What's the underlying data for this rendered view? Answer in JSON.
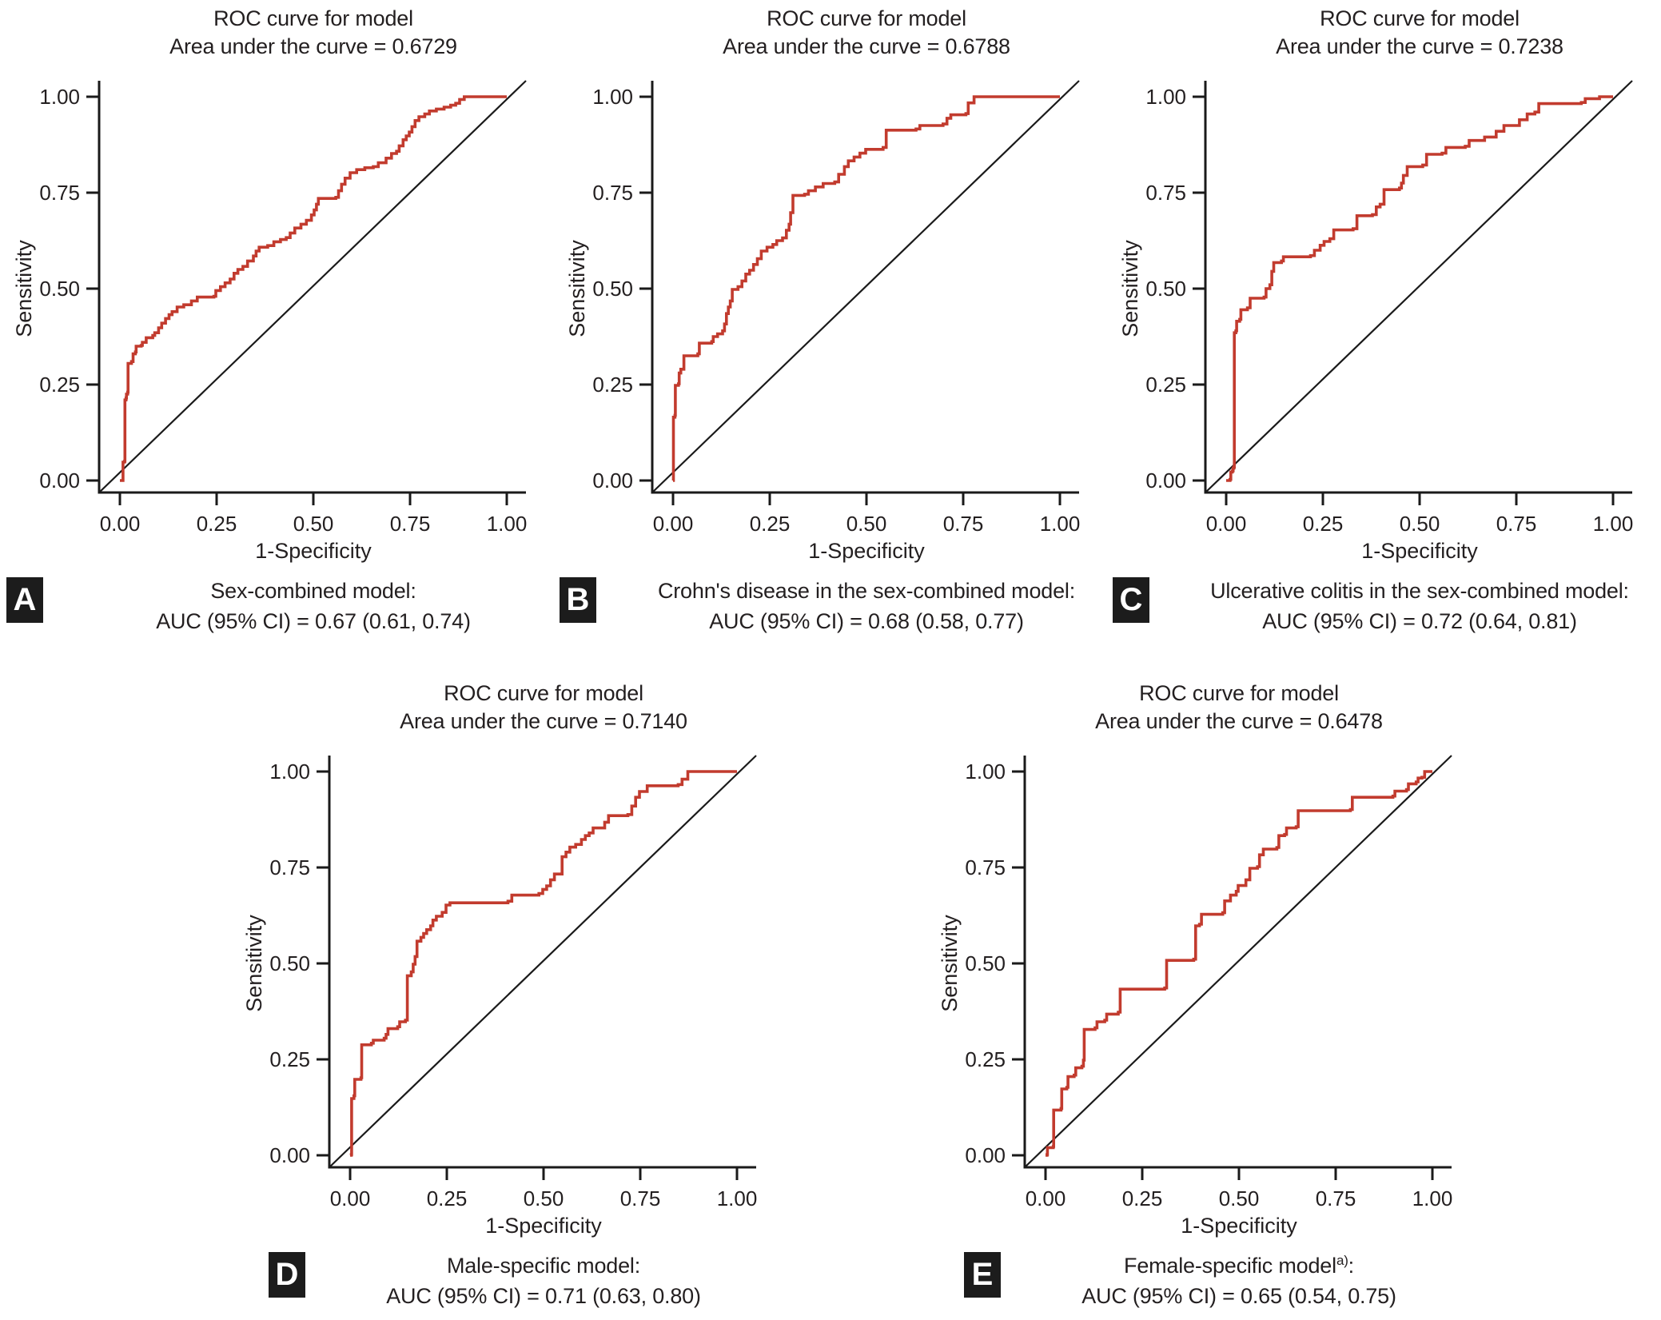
{
  "figure": {
    "x_axis_label": "1-Specificity",
    "y_axis_label": "Sensitivity",
    "x_tick_labels": [
      "0.00",
      "0.25",
      "0.50",
      "0.75",
      "1.00"
    ],
    "y_tick_labels": [
      "1.00",
      "0.75",
      "0.50",
      "0.25",
      "0.00"
    ],
    "curve_color": "#c23b2e",
    "diagonal_color": "#1a1a1a",
    "axis_color": "#1a1a1a",
    "badge_bg_color": "#1c1c1c",
    "badge_text_color": "#ffffff"
  },
  "chart_data": [
    {
      "panel_label": "A",
      "type": "line",
      "title": "ROC curve for model",
      "subtitle": "Area under the curve = 0.6729",
      "auc": 0.6729,
      "auc_95ci": [
        0.61,
        0.74
      ],
      "caption_model": "Sex-combined model",
      "caption_sup": "",
      "caption_colon": ":",
      "caption_auc": "AUC (95% CI) = 0.67 (0.61, 0.74)",
      "xlabel": "1-Specificity",
      "ylabel": "Sensitivity",
      "xlim": [
        0,
        1
      ],
      "ylim": [
        0,
        1
      ],
      "points": [
        [
          0,
          0
        ],
        [
          0.008,
          0.002
        ],
        [
          0.008,
          0.048
        ],
        [
          0.012,
          0.05
        ],
        [
          0.013,
          0.21
        ],
        [
          0.016,
          0.215
        ],
        [
          0.017,
          0.225
        ],
        [
          0.02,
          0.23
        ],
        [
          0.021,
          0.305
        ],
        [
          0.03,
          0.31
        ],
        [
          0.034,
          0.33
        ],
        [
          0.04,
          0.335
        ],
        [
          0.042,
          0.35
        ],
        [
          0.055,
          0.352
        ],
        [
          0.058,
          0.36
        ],
        [
          0.068,
          0.372
        ],
        [
          0.085,
          0.378
        ],
        [
          0.09,
          0.385
        ],
        [
          0.1,
          0.398
        ],
        [
          0.108,
          0.41
        ],
        [
          0.118,
          0.422
        ],
        [
          0.127,
          0.432
        ],
        [
          0.135,
          0.44
        ],
        [
          0.148,
          0.452
        ],
        [
          0.165,
          0.458
        ],
        [
          0.185,
          0.468
        ],
        [
          0.2,
          0.478
        ],
        [
          0.243,
          0.48
        ],
        [
          0.248,
          0.495
        ],
        [
          0.26,
          0.505
        ],
        [
          0.272,
          0.515
        ],
        [
          0.285,
          0.525
        ],
        [
          0.295,
          0.54
        ],
        [
          0.305,
          0.55
        ],
        [
          0.318,
          0.558
        ],
        [
          0.33,
          0.572
        ],
        [
          0.345,
          0.585
        ],
        [
          0.352,
          0.598
        ],
        [
          0.36,
          0.608
        ],
        [
          0.382,
          0.612
        ],
        [
          0.398,
          0.622
        ],
        [
          0.415,
          0.628
        ],
        [
          0.43,
          0.633
        ],
        [
          0.44,
          0.645
        ],
        [
          0.452,
          0.658
        ],
        [
          0.468,
          0.668
        ],
        [
          0.482,
          0.678
        ],
        [
          0.495,
          0.692
        ],
        [
          0.502,
          0.705
        ],
        [
          0.508,
          0.72
        ],
        [
          0.513,
          0.735
        ],
        [
          0.558,
          0.738
        ],
        [
          0.565,
          0.755
        ],
        [
          0.573,
          0.772
        ],
        [
          0.582,
          0.788
        ],
        [
          0.595,
          0.802
        ],
        [
          0.612,
          0.81
        ],
        [
          0.633,
          0.815
        ],
        [
          0.655,
          0.818
        ],
        [
          0.668,
          0.828
        ],
        [
          0.688,
          0.84
        ],
        [
          0.702,
          0.852
        ],
        [
          0.715,
          0.858
        ],
        [
          0.722,
          0.872
        ],
        [
          0.732,
          0.888
        ],
        [
          0.74,
          0.898
        ],
        [
          0.748,
          0.908
        ],
        [
          0.755,
          0.922
        ],
        [
          0.763,
          0.938
        ],
        [
          0.773,
          0.948
        ],
        [
          0.788,
          0.955
        ],
        [
          0.8,
          0.963
        ],
        [
          0.818,
          0.968
        ],
        [
          0.838,
          0.973
        ],
        [
          0.855,
          0.978
        ],
        [
          0.868,
          0.983
        ],
        [
          0.878,
          0.993
        ],
        [
          0.89,
          1
        ],
        [
          1,
          1
        ]
      ]
    },
    {
      "panel_label": "B",
      "type": "line",
      "title": "ROC curve for model",
      "subtitle": "Area under the curve = 0.6788",
      "auc": 0.6788,
      "auc_95ci": [
        0.58,
        0.77
      ],
      "caption_model": "Crohn's disease in the sex-combined model",
      "caption_sup": "",
      "caption_colon": ":",
      "caption_auc": "AUC (95% CI) = 0.68 (0.58, 0.77)",
      "xlabel": "1-Specificity",
      "ylabel": "Sensitivity",
      "xlim": [
        0,
        1
      ],
      "ylim": [
        0,
        1
      ],
      "points": [
        [
          0,
          0
        ],
        [
          0.001,
          0.165
        ],
        [
          0.005,
          0.17
        ],
        [
          0.006,
          0.248
        ],
        [
          0.014,
          0.252
        ],
        [
          0.016,
          0.28
        ],
        [
          0.02,
          0.29
        ],
        [
          0.028,
          0.325
        ],
        [
          0.064,
          0.33
        ],
        [
          0.068,
          0.358
        ],
        [
          0.1,
          0.362
        ],
        [
          0.104,
          0.375
        ],
        [
          0.115,
          0.382
        ],
        [
          0.128,
          0.39
        ],
        [
          0.133,
          0.408
        ],
        [
          0.138,
          0.435
        ],
        [
          0.143,
          0.452
        ],
        [
          0.148,
          0.468
        ],
        [
          0.153,
          0.498
        ],
        [
          0.168,
          0.505
        ],
        [
          0.178,
          0.52
        ],
        [
          0.188,
          0.538
        ],
        [
          0.198,
          0.548
        ],
        [
          0.208,
          0.563
        ],
        [
          0.218,
          0.578
        ],
        [
          0.228,
          0.598
        ],
        [
          0.243,
          0.608
        ],
        [
          0.258,
          0.615
        ],
        [
          0.268,
          0.625
        ],
        [
          0.283,
          0.632
        ],
        [
          0.293,
          0.652
        ],
        [
          0.3,
          0.668
        ],
        [
          0.304,
          0.698
        ],
        [
          0.31,
          0.743
        ],
        [
          0.34,
          0.746
        ],
        [
          0.35,
          0.755
        ],
        [
          0.368,
          0.765
        ],
        [
          0.388,
          0.774
        ],
        [
          0.418,
          0.778
        ],
        [
          0.428,
          0.798
        ],
        [
          0.443,
          0.818
        ],
        [
          0.453,
          0.833
        ],
        [
          0.468,
          0.843
        ],
        [
          0.483,
          0.853
        ],
        [
          0.498,
          0.863
        ],
        [
          0.543,
          0.868
        ],
        [
          0.551,
          0.913
        ],
        [
          0.628,
          0.916
        ],
        [
          0.638,
          0.925
        ],
        [
          0.698,
          0.929
        ],
        [
          0.708,
          0.944
        ],
        [
          0.718,
          0.953
        ],
        [
          0.757,
          0.956
        ],
        [
          0.763,
          0.984
        ],
        [
          0.778,
          1
        ],
        [
          1,
          1
        ]
      ]
    },
    {
      "panel_label": "C",
      "type": "line",
      "title": "ROC curve for model",
      "subtitle": "Area under the curve = 0.7238",
      "auc": 0.7238,
      "auc_95ci": [
        0.64,
        0.81
      ],
      "caption_model": "Ulcerative colitis in the sex-combined model",
      "caption_sup": "",
      "caption_colon": ":",
      "caption_auc": "AUC (95% CI) = 0.72 (0.64, 0.81)",
      "xlabel": "1-Specificity",
      "ylabel": "Sensitivity",
      "xlim": [
        0,
        1
      ],
      "ylim": [
        0,
        1
      ],
      "points": [
        [
          0,
          0
        ],
        [
          0.01,
          0.003
        ],
        [
          0.012,
          0.022
        ],
        [
          0.016,
          0.025
        ],
        [
          0.018,
          0.032
        ],
        [
          0.02,
          0.035
        ],
        [
          0.021,
          0.385
        ],
        [
          0.025,
          0.39
        ],
        [
          0.027,
          0.415
        ],
        [
          0.035,
          0.42
        ],
        [
          0.038,
          0.445
        ],
        [
          0.055,
          0.45
        ],
        [
          0.062,
          0.475
        ],
        [
          0.098,
          0.478
        ],
        [
          0.103,
          0.5
        ],
        [
          0.113,
          0.51
        ],
        [
          0.118,
          0.545
        ],
        [
          0.123,
          0.568
        ],
        [
          0.143,
          0.572
        ],
        [
          0.148,
          0.583
        ],
        [
          0.218,
          0.586
        ],
        [
          0.228,
          0.6
        ],
        [
          0.243,
          0.613
        ],
        [
          0.253,
          0.623
        ],
        [
          0.268,
          0.63
        ],
        [
          0.278,
          0.653
        ],
        [
          0.328,
          0.656
        ],
        [
          0.338,
          0.69
        ],
        [
          0.378,
          0.693
        ],
        [
          0.388,
          0.713
        ],
        [
          0.398,
          0.72
        ],
        [
          0.408,
          0.758
        ],
        [
          0.448,
          0.762
        ],
        [
          0.453,
          0.775
        ],
        [
          0.458,
          0.795
        ],
        [
          0.468,
          0.818
        ],
        [
          0.508,
          0.822
        ],
        [
          0.518,
          0.85
        ],
        [
          0.558,
          0.853
        ],
        [
          0.568,
          0.868
        ],
        [
          0.618,
          0.871
        ],
        [
          0.628,
          0.886
        ],
        [
          0.668,
          0.895
        ],
        [
          0.698,
          0.91
        ],
        [
          0.718,
          0.925
        ],
        [
          0.758,
          0.94
        ],
        [
          0.778,
          0.955
        ],
        [
          0.798,
          0.96
        ],
        [
          0.808,
          0.982
        ],
        [
          0.918,
          0.985
        ],
        [
          0.928,
          0.995
        ],
        [
          0.965,
          1
        ],
        [
          1,
          1
        ]
      ]
    },
    {
      "panel_label": "D",
      "type": "line",
      "title": "ROC curve for model",
      "subtitle": "Area under the curve = 0.7140",
      "auc": 0.714,
      "auc_95ci": [
        0.63,
        0.8
      ],
      "caption_model": "Male-specific model",
      "caption_sup": "",
      "caption_colon": ":",
      "caption_auc": "AUC (95% CI) = 0.71 (0.63, 0.80)",
      "xlabel": "1-Specificity",
      "ylabel": "Sensitivity",
      "xlim": [
        0,
        1
      ],
      "ylim": [
        0,
        1
      ],
      "points": [
        [
          0,
          0
        ],
        [
          0.003,
          0.002
        ],
        [
          0.004,
          0.148
        ],
        [
          0.01,
          0.155
        ],
        [
          0.012,
          0.198
        ],
        [
          0.028,
          0.202
        ],
        [
          0.03,
          0.288
        ],
        [
          0.055,
          0.292
        ],
        [
          0.06,
          0.3
        ],
        [
          0.088,
          0.305
        ],
        [
          0.093,
          0.315
        ],
        [
          0.098,
          0.33
        ],
        [
          0.123,
          0.335
        ],
        [
          0.128,
          0.348
        ],
        [
          0.143,
          0.352
        ],
        [
          0.148,
          0.468
        ],
        [
          0.158,
          0.478
        ],
        [
          0.163,
          0.498
        ],
        [
          0.168,
          0.518
        ],
        [
          0.173,
          0.558
        ],
        [
          0.183,
          0.568
        ],
        [
          0.19,
          0.578
        ],
        [
          0.198,
          0.588
        ],
        [
          0.208,
          0.598
        ],
        [
          0.214,
          0.613
        ],
        [
          0.223,
          0.623
        ],
        [
          0.238,
          0.633
        ],
        [
          0.248,
          0.652
        ],
        [
          0.258,
          0.658
        ],
        [
          0.408,
          0.662
        ],
        [
          0.418,
          0.678
        ],
        [
          0.488,
          0.682
        ],
        [
          0.498,
          0.693
        ],
        [
          0.508,
          0.702
        ],
        [
          0.518,
          0.718
        ],
        [
          0.528,
          0.733
        ],
        [
          0.548,
          0.778
        ],
        [
          0.558,
          0.79
        ],
        [
          0.568,
          0.803
        ],
        [
          0.583,
          0.81
        ],
        [
          0.598,
          0.823
        ],
        [
          0.608,
          0.833
        ],
        [
          0.618,
          0.84
        ],
        [
          0.628,
          0.853
        ],
        [
          0.658,
          0.868
        ],
        [
          0.668,
          0.885
        ],
        [
          0.718,
          0.888
        ],
        [
          0.728,
          0.91
        ],
        [
          0.738,
          0.933
        ],
        [
          0.748,
          0.948
        ],
        [
          0.768,
          0.963
        ],
        [
          0.848,
          0.966
        ],
        [
          0.858,
          0.98
        ],
        [
          0.873,
          1
        ],
        [
          1,
          1
        ]
      ]
    },
    {
      "panel_label": "E",
      "type": "line",
      "title": "ROC curve for model",
      "subtitle": "Area under the curve = 0.6478",
      "auc": 0.6478,
      "auc_95ci": [
        0.54,
        0.75
      ],
      "caption_model": "Female-specific model",
      "caption_sup": "a)",
      "caption_colon": ":",
      "caption_auc": "AUC (95% CI) = 0.65 (0.54, 0.75)",
      "xlabel": "1-Specificity",
      "ylabel": "Sensitivity",
      "xlim": [
        0,
        1
      ],
      "ylim": [
        0,
        1
      ],
      "points": [
        [
          0,
          0
        ],
        [
          0.004,
          0.002
        ],
        [
          0.005,
          0.02
        ],
        [
          0.02,
          0.023
        ],
        [
          0.021,
          0.118
        ],
        [
          0.04,
          0.122
        ],
        [
          0.042,
          0.173
        ],
        [
          0.055,
          0.177
        ],
        [
          0.058,
          0.205
        ],
        [
          0.074,
          0.209
        ],
        [
          0.078,
          0.228
        ],
        [
          0.094,
          0.232
        ],
        [
          0.098,
          0.248
        ],
        [
          0.1,
          0.328
        ],
        [
          0.128,
          0.332
        ],
        [
          0.133,
          0.348
        ],
        [
          0.153,
          0.352
        ],
        [
          0.158,
          0.368
        ],
        [
          0.188,
          0.373
        ],
        [
          0.193,
          0.433
        ],
        [
          0.308,
          0.436
        ],
        [
          0.313,
          0.508
        ],
        [
          0.383,
          0.511
        ],
        [
          0.388,
          0.598
        ],
        [
          0.398,
          0.602
        ],
        [
          0.403,
          0.628
        ],
        [
          0.458,
          0.632
        ],
        [
          0.463,
          0.663
        ],
        [
          0.478,
          0.678
        ],
        [
          0.493,
          0.688
        ],
        [
          0.498,
          0.703
        ],
        [
          0.518,
          0.718
        ],
        [
          0.528,
          0.748
        ],
        [
          0.548,
          0.752
        ],
        [
          0.553,
          0.783
        ],
        [
          0.563,
          0.798
        ],
        [
          0.598,
          0.802
        ],
        [
          0.603,
          0.833
        ],
        [
          0.618,
          0.836
        ],
        [
          0.623,
          0.853
        ],
        [
          0.648,
          0.856
        ],
        [
          0.653,
          0.898
        ],
        [
          0.788,
          0.901
        ],
        [
          0.793,
          0.933
        ],
        [
          0.898,
          0.936
        ],
        [
          0.903,
          0.949
        ],
        [
          0.933,
          0.953
        ],
        [
          0.938,
          0.968
        ],
        [
          0.958,
          0.973
        ],
        [
          0.963,
          0.983
        ],
        [
          0.973,
          0.985
        ],
        [
          0.98,
          1
        ],
        [
          1,
          1
        ]
      ]
    }
  ]
}
